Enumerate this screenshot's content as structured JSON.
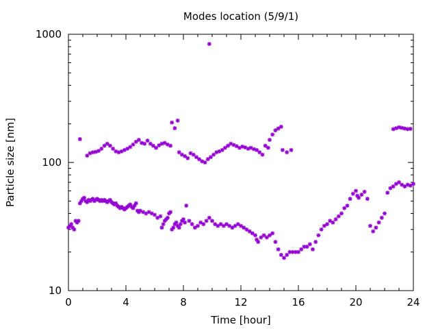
{
  "chart_data": {
    "type": "scatter",
    "title": "Modes location (5/9/1)",
    "xlabel": "Time [hour]",
    "ylabel": "Particle size [nm]",
    "xlim": [
      0,
      24
    ],
    "ylim": [
      10,
      1000
    ],
    "yscale": "log",
    "grid": false,
    "legend": "none",
    "x_ticks": [
      0,
      4,
      8,
      12,
      16,
      20,
      24
    ],
    "x_tick_labels": [
      "0",
      "4",
      "8",
      "12",
      "16",
      "20",
      "24"
    ],
    "y_ticks": [
      10,
      100,
      1000
    ],
    "y_tick_labels": [
      "10",
      "100",
      "1000"
    ],
    "marker": "asterisk",
    "color": "#9400d3",
    "series": [
      {
        "values": [
          [
            0.0,
            31
          ],
          [
            0.1,
            32
          ],
          [
            0.2,
            33
          ],
          [
            0.3,
            31
          ],
          [
            0.4,
            30
          ],
          [
            0.5,
            35
          ],
          [
            0.6,
            34
          ],
          [
            0.7,
            35
          ],
          [
            0.8,
            48
          ],
          [
            0.9,
            50
          ],
          [
            1.0,
            52
          ],
          [
            1.1,
            53
          ],
          [
            1.2,
            50
          ],
          [
            1.3,
            49
          ],
          [
            1.4,
            51
          ],
          [
            1.5,
            50
          ],
          [
            1.6,
            51
          ],
          [
            1.7,
            52
          ],
          [
            1.8,
            50
          ],
          [
            1.9,
            51
          ],
          [
            2.0,
            52
          ],
          [
            2.1,
            51
          ],
          [
            2.2,
            50
          ],
          [
            2.3,
            51
          ],
          [
            2.4,
            50
          ],
          [
            2.5,
            51
          ],
          [
            2.6,
            50
          ],
          [
            2.7,
            49
          ],
          [
            2.8,
            50
          ],
          [
            2.9,
            51
          ],
          [
            3.0,
            49
          ],
          [
            3.1,
            48
          ],
          [
            3.2,
            47
          ],
          [
            3.3,
            48
          ],
          [
            3.4,
            46
          ],
          [
            3.5,
            45
          ],
          [
            3.6,
            44
          ],
          [
            3.7,
            45
          ],
          [
            3.8,
            44
          ],
          [
            3.9,
            43
          ],
          [
            4.0,
            44
          ],
          [
            4.1,
            45
          ],
          [
            4.2,
            46
          ],
          [
            4.3,
            47
          ],
          [
            4.4,
            45
          ],
          [
            4.5,
            44
          ],
          [
            4.6,
            46
          ],
          [
            4.7,
            48
          ],
          [
            4.8,
            42
          ],
          [
            4.9,
            41
          ],
          [
            5.0,
            42
          ],
          [
            5.2,
            41
          ],
          [
            5.4,
            40
          ],
          [
            5.6,
            41
          ],
          [
            5.8,
            40
          ],
          [
            6.0,
            39
          ],
          [
            6.2,
            37
          ],
          [
            6.4,
            38
          ],
          [
            6.5,
            31
          ],
          [
            6.6,
            33
          ],
          [
            6.7,
            35
          ],
          [
            6.8,
            36
          ],
          [
            6.9,
            37
          ],
          [
            7.0,
            40
          ],
          [
            7.1,
            41
          ],
          [
            7.2,
            30
          ],
          [
            7.3,
            31
          ],
          [
            7.4,
            33
          ],
          [
            7.5,
            34
          ],
          [
            7.6,
            32
          ],
          [
            7.7,
            31
          ],
          [
            7.8,
            33
          ],
          [
            7.9,
            35
          ],
          [
            8.0,
            36
          ],
          [
            8.1,
            34
          ],
          [
            8.2,
            46
          ],
          [
            8.4,
            35
          ],
          [
            8.6,
            33
          ],
          [
            8.8,
            31
          ],
          [
            9.0,
            32
          ],
          [
            9.2,
            34
          ],
          [
            9.4,
            33
          ],
          [
            9.6,
            35
          ],
          [
            9.8,
            37
          ],
          [
            10.0,
            35
          ],
          [
            10.2,
            33
          ],
          [
            10.4,
            32
          ],
          [
            10.6,
            33
          ],
          [
            10.8,
            32
          ],
          [
            11.0,
            33
          ],
          [
            11.2,
            32
          ],
          [
            11.4,
            31
          ],
          [
            11.6,
            32
          ],
          [
            11.8,
            33
          ],
          [
            12.0,
            32
          ],
          [
            12.2,
            31
          ],
          [
            12.4,
            30
          ],
          [
            12.6,
            29
          ],
          [
            12.8,
            28
          ],
          [
            13.0,
            27
          ],
          [
            13.1,
            25
          ],
          [
            13.2,
            24
          ],
          [
            13.4,
            26
          ],
          [
            13.6,
            27
          ],
          [
            13.8,
            26
          ],
          [
            14.0,
            27
          ],
          [
            14.2,
            28
          ],
          [
            14.4,
            24
          ],
          [
            14.6,
            21
          ],
          [
            14.8,
            19
          ],
          [
            15.0,
            18
          ],
          [
            15.2,
            19
          ],
          [
            15.4,
            20
          ],
          [
            15.6,
            20
          ],
          [
            15.8,
            20
          ],
          [
            16.0,
            20
          ],
          [
            16.2,
            21
          ],
          [
            16.4,
            22
          ],
          [
            16.6,
            22
          ],
          [
            16.8,
            23
          ],
          [
            17.0,
            21
          ],
          [
            17.2,
            24
          ],
          [
            17.4,
            27
          ],
          [
            17.6,
            30
          ],
          [
            17.8,
            32
          ],
          [
            18.0,
            33
          ],
          [
            18.2,
            35
          ],
          [
            18.4,
            34
          ],
          [
            18.6,
            36
          ],
          [
            18.8,
            38
          ],
          [
            19.0,
            40
          ],
          [
            19.2,
            44
          ],
          [
            19.4,
            46
          ],
          [
            19.6,
            52
          ],
          [
            19.8,
            57
          ],
          [
            20.0,
            60
          ],
          [
            20.1,
            55
          ],
          [
            20.2,
            53
          ],
          [
            20.4,
            56
          ],
          [
            20.6,
            59
          ],
          [
            20.8,
            52
          ],
          [
            21.0,
            32
          ],
          [
            21.2,
            29
          ],
          [
            21.4,
            31
          ],
          [
            21.6,
            34
          ],
          [
            21.8,
            37
          ],
          [
            22.0,
            40
          ],
          [
            22.2,
            58
          ],
          [
            22.4,
            63
          ],
          [
            22.6,
            65
          ],
          [
            22.8,
            68
          ],
          [
            23.0,
            70
          ],
          [
            23.2,
            67
          ],
          [
            23.4,
            65
          ],
          [
            23.6,
            67
          ],
          [
            23.8,
            66
          ],
          [
            24.0,
            68
          ]
        ]
      },
      {
        "values": [
          [
            0.8,
            152
          ],
          [
            1.3,
            113
          ],
          [
            1.5,
            118
          ],
          [
            1.7,
            120
          ],
          [
            1.9,
            121
          ],
          [
            2.1,
            123
          ],
          [
            2.3,
            128
          ],
          [
            2.5,
            135
          ],
          [
            2.7,
            140
          ],
          [
            2.9,
            135
          ],
          [
            3.1,
            128
          ],
          [
            3.3,
            122
          ],
          [
            3.5,
            120
          ],
          [
            3.7,
            122
          ],
          [
            3.9,
            125
          ],
          [
            4.1,
            128
          ],
          [
            4.3,
            132
          ],
          [
            4.5,
            138
          ],
          [
            4.7,
            145
          ],
          [
            4.9,
            150
          ],
          [
            5.1,
            142
          ],
          [
            5.3,
            140
          ],
          [
            5.5,
            148
          ],
          [
            5.7,
            140
          ],
          [
            5.9,
            135
          ],
          [
            6.1,
            130
          ],
          [
            6.3,
            136
          ],
          [
            6.5,
            140
          ],
          [
            6.7,
            142
          ],
          [
            6.9,
            138
          ],
          [
            7.1,
            135
          ],
          [
            7.2,
            205
          ],
          [
            7.4,
            185
          ],
          [
            7.6,
            212
          ],
          [
            7.7,
            120
          ],
          [
            7.9,
            115
          ],
          [
            8.1,
            112
          ],
          [
            8.3,
            108
          ],
          [
            8.5,
            118
          ],
          [
            8.7,
            115
          ],
          [
            8.9,
            110
          ],
          [
            9.1,
            106
          ],
          [
            9.3,
            102
          ],
          [
            9.5,
            100
          ],
          [
            9.7,
            106
          ],
          [
            9.8,
            840
          ],
          [
            9.9,
            110
          ],
          [
            10.1,
            115
          ],
          [
            10.3,
            120
          ],
          [
            10.5,
            122
          ],
          [
            10.7,
            125
          ],
          [
            10.9,
            130
          ],
          [
            11.1,
            135
          ],
          [
            11.3,
            140
          ],
          [
            11.5,
            137
          ],
          [
            11.7,
            134
          ],
          [
            11.9,
            130
          ],
          [
            12.1,
            133
          ],
          [
            12.3,
            131
          ],
          [
            12.5,
            128
          ],
          [
            12.7,
            130
          ],
          [
            12.9,
            127
          ],
          [
            13.1,
            125
          ],
          [
            13.3,
            120
          ],
          [
            13.5,
            115
          ],
          [
            13.7,
            135
          ],
          [
            13.9,
            130
          ],
          [
            14.0,
            150
          ],
          [
            14.2,
            165
          ],
          [
            14.4,
            178
          ],
          [
            14.6,
            184
          ],
          [
            14.8,
            190
          ],
          [
            14.9,
            125
          ],
          [
            15.2,
            120
          ],
          [
            15.5,
            125
          ],
          [
            22.6,
            182
          ],
          [
            22.8,
            185
          ],
          [
            23.0,
            188
          ],
          [
            23.2,
            186
          ],
          [
            23.4,
            184
          ],
          [
            23.6,
            182
          ],
          [
            23.8,
            183
          ]
        ]
      }
    ]
  }
}
